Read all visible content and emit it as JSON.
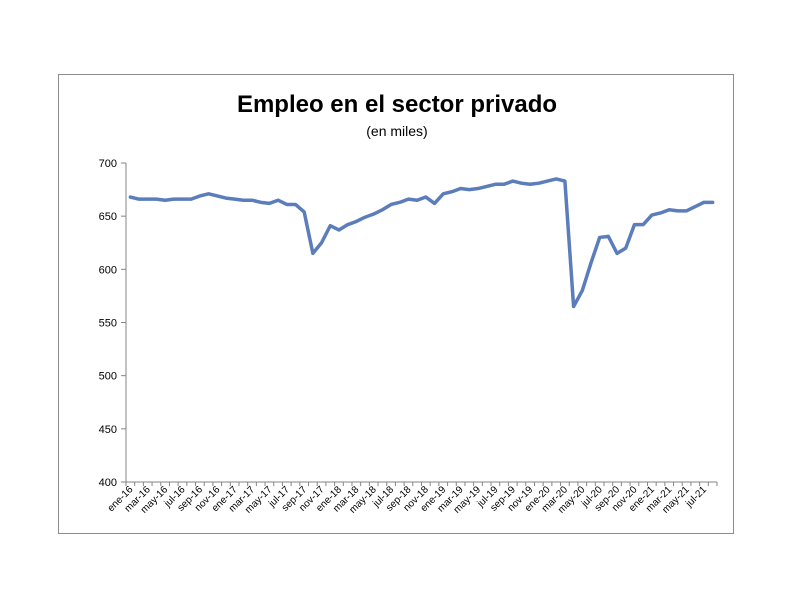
{
  "chart_data": {
    "type": "line",
    "title": "Empleo en el sector privado",
    "subtitle": "(en miles)",
    "xlabel": "",
    "ylabel": "",
    "ylim": [
      400,
      700
    ],
    "yticks": [
      400,
      450,
      500,
      550,
      600,
      650,
      700
    ],
    "grid": false,
    "legend": "none",
    "line_color": "#5b7dbb",
    "x": [
      "ene-16",
      "feb-16",
      "mar-16",
      "abr-16",
      "may-16",
      "jun-16",
      "jul-16",
      "ago-16",
      "sep-16",
      "oct-16",
      "nov-16",
      "dic-16",
      "ene-17",
      "feb-17",
      "mar-17",
      "abr-17",
      "may-17",
      "jun-17",
      "jul-17",
      "ago-17",
      "sep-17",
      "oct-17",
      "nov-17",
      "dic-17",
      "ene-18",
      "feb-18",
      "mar-18",
      "abr-18",
      "may-18",
      "jun-18",
      "jul-18",
      "ago-18",
      "sep-18",
      "oct-18",
      "nov-18",
      "dic-18",
      "ene-19",
      "feb-19",
      "mar-19",
      "abr-19",
      "may-19",
      "jun-19",
      "jul-19",
      "ago-19",
      "sep-19",
      "oct-19",
      "nov-19",
      "dic-19",
      "ene-20",
      "feb-20",
      "mar-20",
      "abr-20",
      "may-20",
      "jun-20",
      "jul-20",
      "ago-20",
      "sep-20",
      "oct-20",
      "nov-20",
      "dic-20",
      "ene-21",
      "feb-21",
      "mar-21",
      "abr-21",
      "may-21",
      "jun-21",
      "jul-21",
      "ago-21"
    ],
    "xtick_labels": [
      "ene-16",
      "mar-16",
      "may-16",
      "jul-16",
      "sep-16",
      "nov-16",
      "ene-17",
      "mar-17",
      "may-17",
      "jul-17",
      "sep-17",
      "nov-17",
      "ene-18",
      "mar-18",
      "may-18",
      "jul-18",
      "sep-18",
      "nov-18",
      "ene-19",
      "mar-19",
      "may-19",
      "jul-19",
      "sep-19",
      "nov-19",
      "ene-20",
      "mar-20",
      "may-20",
      "jul-20",
      "sep-20",
      "nov-20",
      "ene-21",
      "mar-21",
      "may-21",
      "jul-21"
    ],
    "series": [
      {
        "values": [
          668,
          666,
          666,
          666,
          665,
          666,
          666,
          666,
          669,
          671,
          669,
          667,
          666,
          665,
          665,
          663,
          662,
          665,
          661,
          661,
          654,
          615,
          625,
          641,
          637,
          642,
          645,
          649,
          652,
          656,
          661,
          663,
          666,
          665,
          668,
          662,
          671,
          673,
          676,
          675,
          676,
          678,
          680,
          680,
          683,
          681,
          680,
          681,
          683,
          685,
          683,
          565,
          580,
          606,
          630,
          631,
          615,
          620,
          642,
          642,
          651,
          653,
          656,
          655,
          655,
          659,
          663,
          663
        ]
      }
    ]
  }
}
